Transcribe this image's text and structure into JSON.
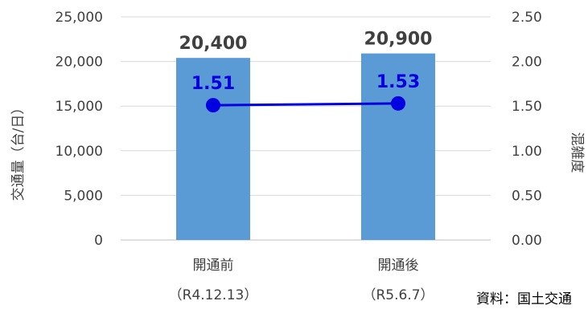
{
  "chart_data": {
    "type": "bar",
    "categories": [
      "開通前",
      "開通後"
    ],
    "category_sublabels": [
      "（R4.12.13）",
      "（R5.6.7）"
    ],
    "series": [
      {
        "type": "bar",
        "values": [
          20400,
          20900
        ],
        "data_labels": [
          "20,400",
          "20,900"
        ],
        "color": "#5b9bd5",
        "axis": "left"
      },
      {
        "type": "line",
        "values": [
          1.51,
          1.53
        ],
        "data_labels": [
          "1.51",
          "1.53"
        ],
        "color": "#0000e0",
        "axis": "right"
      }
    ],
    "ylabel": "交通量（台/日）",
    "y2label": "混雑度",
    "ylim": [
      0,
      25000
    ],
    "y2lim": [
      0,
      2.5
    ],
    "yticks": [
      "0",
      "5,000",
      "10,000",
      "15,000",
      "20,000",
      "25,000"
    ],
    "y2ticks": [
      "0.00",
      "0.50",
      "1.00",
      "1.50",
      "2.00",
      "2.50"
    ],
    "grid": true
  },
  "source_text": "資料：国土交通"
}
